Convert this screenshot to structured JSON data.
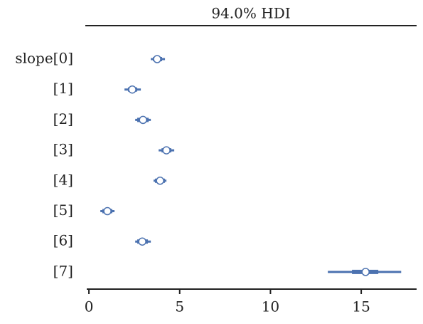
{
  "chart_data": {
    "type": "forest",
    "title": "94.0% HDI",
    "categories": [
      "slope[0]",
      "[1]",
      "[2]",
      "[3]",
      "[4]",
      "[5]",
      "[6]",
      "[7]"
    ],
    "values": [
      3.76,
      2.39,
      2.98,
      4.27,
      3.92,
      1.02,
      2.94,
      15.24
    ],
    "hdi_low": [
      3.41,
      1.96,
      2.55,
      3.84,
      3.56,
      0.63,
      2.55,
      13.16
    ],
    "hdi_high": [
      4.19,
      2.86,
      3.41,
      4.7,
      4.27,
      1.41,
      3.41,
      17.2
    ],
    "iqr_low": [
      3.53,
      2.15,
      2.66,
      4.0,
      3.64,
      0.74,
      2.66,
      14.49
    ],
    "iqr_high": [
      4.03,
      2.66,
      3.29,
      4.54,
      4.19,
      1.29,
      3.25,
      15.94
    ],
    "color": "#4c72b0",
    "xlim": [
      -0.12,
      18.05
    ],
    "xticks": [
      0,
      5,
      10,
      15
    ]
  }
}
